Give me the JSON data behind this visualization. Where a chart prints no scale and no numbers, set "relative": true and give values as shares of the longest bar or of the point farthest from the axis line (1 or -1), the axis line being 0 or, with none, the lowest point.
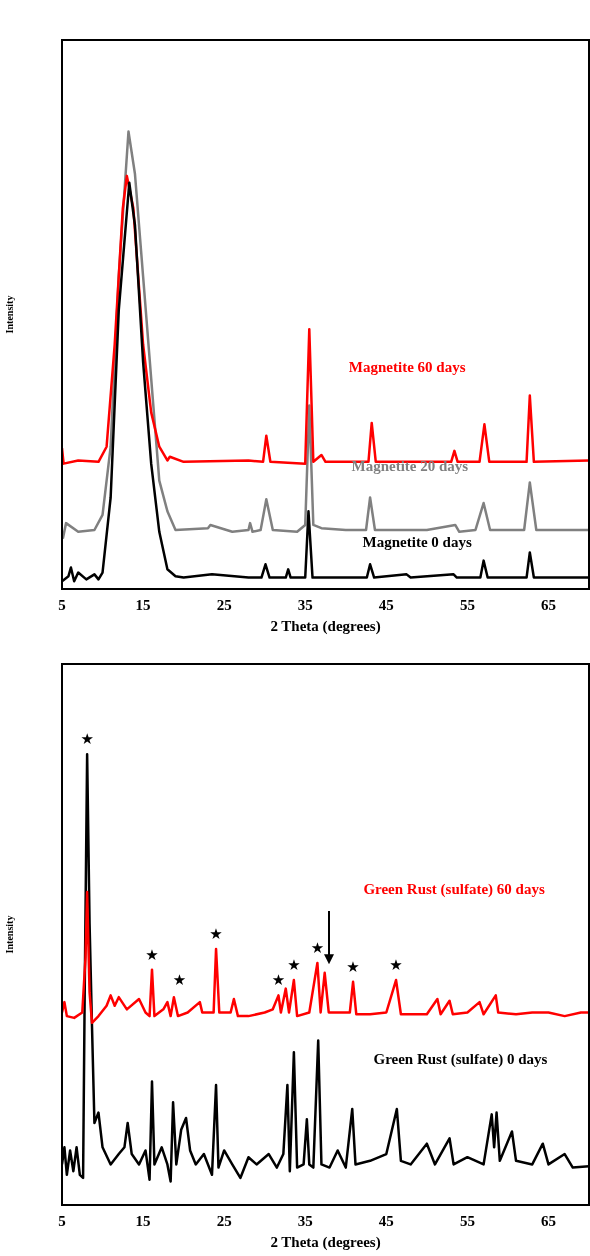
{
  "chart_data": [
    {
      "type": "line",
      "relative": true,
      "xlim": [
        5,
        70
      ],
      "xticks": [
        5,
        15,
        25,
        35,
        45,
        55,
        65
      ],
      "xlabel": "2 Theta (degrees)",
      "ylabel": "Intensity",
      "tick_labels": "x",
      "grid": false,
      "legend": false,
      "marker": "none",
      "line_style": "solid",
      "series": [
        {
          "name": "Magnetite 20 days",
          "color": "#808080",
          "x": [
            5.1,
            5.5,
            7,
            9,
            10,
            11,
            12,
            13.2,
            14,
            15,
            16,
            17,
            18,
            19,
            23,
            23.3,
            26,
            28,
            28.2,
            28.5,
            29.5,
            30.2,
            31,
            34,
            35,
            35.5,
            36,
            37,
            40,
            42.5,
            43,
            43.6,
            50,
            53.5,
            54,
            56,
            57,
            57.8,
            62,
            62.7,
            63.5,
            70
          ],
          "values": [
            0.11,
            0.144,
            0.125,
            0.129,
            0.162,
            0.311,
            0.684,
            1,
            0.907,
            0.684,
            0.46,
            0.237,
            0.17,
            0.129,
            0.133,
            0.14,
            0.125,
            0.129,
            0.144,
            0.125,
            0.129,
            0.196,
            0.129,
            0.125,
            0.14,
            0.401,
            0.14,
            0.133,
            0.129,
            0.129,
            0.2,
            0.129,
            0.129,
            0.14,
            0.125,
            0.129,
            0.188,
            0.129,
            0.129,
            0.233,
            0.129,
            0.129
          ]
        },
        {
          "name": "Magnetite 60 days",
          "color": "#ff0000",
          "x": [
            5,
            5.2,
            7,
            9.5,
            10.5,
            11.5,
            12.5,
            13,
            13.8,
            15,
            16,
            17,
            18,
            18.3,
            20,
            28,
            29.8,
            30.2,
            30.7,
            35,
            35.5,
            36,
            37,
            37.5,
            42.8,
            43.2,
            43.7,
            53,
            53.4,
            53.8,
            56.5,
            57.1,
            57.7,
            62.3,
            62.7,
            63.2,
            70
          ],
          "values": [
            0.308,
            0.274,
            0.281,
            0.278,
            0.311,
            0.535,
            0.832,
            0.903,
            0.832,
            0.535,
            0.386,
            0.311,
            0.281,
            0.289,
            0.278,
            0.281,
            0.278,
            0.335,
            0.278,
            0.274,
            0.568,
            0.278,
            0.293,
            0.278,
            0.278,
            0.363,
            0.278,
            0.278,
            0.302,
            0.278,
            0.278,
            0.36,
            0.278,
            0.278,
            0.423,
            0.278,
            0.281
          ]
        },
        {
          "name": "Magnetite 0 days",
          "color": "#000000",
          "x": [
            5,
            5.8,
            6.1,
            6.5,
            7,
            8,
            9,
            9.5,
            10,
            11,
            12,
            13.3,
            14,
            15,
            16,
            17,
            18,
            19,
            20,
            23.5,
            28,
            29.6,
            30.1,
            30.6,
            32.6,
            32.9,
            33.2,
            35,
            35.4,
            35.9,
            42.6,
            43,
            43.5,
            47.5,
            48,
            53.3,
            53.7,
            56.6,
            57,
            57.5,
            62.3,
            62.7,
            63.2,
            70
          ],
          "values": [
            0.017,
            0.028,
            0.047,
            0.017,
            0.036,
            0.021,
            0.032,
            0.021,
            0.036,
            0.2,
            0.609,
            0.888,
            0.795,
            0.497,
            0.274,
            0.125,
            0.043,
            0.028,
            0.025,
            0.032,
            0.025,
            0.025,
            0.054,
            0.025,
            0.025,
            0.043,
            0.025,
            0.025,
            0.17,
            0.025,
            0.025,
            0.054,
            0.025,
            0.032,
            0.025,
            0.032,
            0.025,
            0.025,
            0.062,
            0.025,
            0.025,
            0.08,
            0.025,
            0.025
          ]
        }
      ]
    },
    {
      "type": "line",
      "relative": true,
      "xlim": [
        5,
        70
      ],
      "xticks": [
        5,
        15,
        25,
        35,
        45,
        55,
        65
      ],
      "xlabel": "2 Theta (degrees)",
      "ylabel": "Intensity",
      "tick_labels": "x",
      "grid": false,
      "legend": false,
      "marker": "none",
      "line_style": "solid",
      "series": [
        {
          "name": "Green Rust (sulfate) 0 days",
          "color": "#000000",
          "x": [
            5,
            5.3,
            5.6,
            6,
            6.4,
            6.8,
            7.2,
            7.6,
            7.8,
            8.1,
            8.4,
            8.7,
            9,
            9.5,
            10,
            11,
            12,
            12.7,
            13.1,
            13.6,
            14.5,
            15.3,
            15.8,
            16.1,
            16.4,
            17.3,
            18,
            18.4,
            18.7,
            19.1,
            19.7,
            20.3,
            20.8,
            21.5,
            22.5,
            23.5,
            24,
            24.3,
            25,
            26,
            27,
            28,
            29,
            30.5,
            31.5,
            32.3,
            32.8,
            33.1,
            33.6,
            34,
            34.8,
            35.2,
            35.5,
            36,
            36.6,
            37,
            38,
            39,
            40,
            40.8,
            41.2,
            43,
            45,
            46.3,
            46.8,
            48,
            50,
            51,
            52.8,
            53.3,
            55,
            57,
            58,
            58.3,
            58.6,
            59,
            60.5,
            61,
            63,
            64.3,
            65,
            67,
            68,
            70
          ],
          "values": [
            0.09,
            0.128,
            0.067,
            0.121,
            0.075,
            0.128,
            0.067,
            0.06,
            0.472,
            1,
            0.625,
            0.396,
            0.182,
            0.205,
            0.128,
            0.09,
            0.113,
            0.128,
            0.182,
            0.113,
            0.09,
            0.121,
            0.056,
            0.274,
            0.09,
            0.128,
            0.09,
            0.052,
            0.228,
            0.09,
            0.167,
            0.193,
            0.121,
            0.09,
            0.113,
            0.067,
            0.266,
            0.083,
            0.121,
            0.09,
            0.06,
            0.106,
            0.09,
            0.113,
            0.083,
            0.113,
            0.266,
            0.075,
            0.339,
            0.083,
            0.09,
            0.19,
            0.09,
            0.083,
            0.365,
            0.09,
            0.083,
            0.121,
            0.083,
            0.213,
            0.09,
            0.098,
            0.113,
            0.213,
            0.098,
            0.09,
            0.136,
            0.09,
            0.148,
            0.09,
            0.106,
            0.09,
            0.201,
            0.128,
            0.205,
            0.098,
            0.163,
            0.098,
            0.09,
            0.136,
            0.09,
            0.113,
            0.083,
            0.086
          ]
        },
        {
          "name": "Green Rust (sulfate) 60 days",
          "color": "#ff0000",
          "x": [
            5,
            5.3,
            5.6,
            6.5,
            7.5,
            7.9,
            8.1,
            8.4,
            8.7,
            9.5,
            10.5,
            11,
            11.5,
            12,
            13,
            14.5,
            15.3,
            15.8,
            16.1,
            16.4,
            17.5,
            18,
            18.4,
            18.8,
            19.3,
            20.5,
            22,
            22.3,
            23.7,
            24,
            24.4,
            25.8,
            26.2,
            26.7,
            28,
            30,
            31,
            31.7,
            32,
            32.6,
            33,
            33.6,
            34,
            35.5,
            36.5,
            36.9,
            37.4,
            37.9,
            39,
            40.5,
            40.9,
            41.3,
            43,
            45,
            46.2,
            46.8,
            50,
            51.3,
            51.7,
            52.8,
            53.2,
            55,
            56.5,
            57,
            58.5,
            58.8,
            61,
            63,
            65,
            67,
            69,
            70
          ],
          "values": [
            0.427,
            0.45,
            0.419,
            0.415,
            0.427,
            0.549,
            0.694,
            0.472,
            0.404,
            0.419,
            0.442,
            0.465,
            0.442,
            0.461,
            0.434,
            0.457,
            0.427,
            0.419,
            0.522,
            0.419,
            0.434,
            0.45,
            0.419,
            0.461,
            0.419,
            0.427,
            0.45,
            0.427,
            0.427,
            0.568,
            0.427,
            0.427,
            0.457,
            0.419,
            0.419,
            0.427,
            0.434,
            0.465,
            0.427,
            0.48,
            0.427,
            0.499,
            0.419,
            0.427,
            0.537,
            0.427,
            0.515,
            0.427,
            0.427,
            0.427,
            0.495,
            0.423,
            0.423,
            0.427,
            0.499,
            0.423,
            0.423,
            0.457,
            0.423,
            0.453,
            0.423,
            0.427,
            0.45,
            0.423,
            0.465,
            0.427,
            0.423,
            0.427,
            0.427,
            0.419,
            0.427,
            0.427
          ]
        }
      ],
      "annotations": [
        {
          "text": "★",
          "x": 8.1,
          "y": 1
        },
        {
          "text": "★",
          "x": 16.1,
          "y": 0.522
        },
        {
          "text": "★",
          "x": 19.5,
          "y": 0.465
        },
        {
          "text": "★",
          "x": 24,
          "y": 0.568
        },
        {
          "text": "★",
          "x": 31.7,
          "y": 0.465
        },
        {
          "text": "★",
          "x": 33.6,
          "y": 0.499
        },
        {
          "text": "★",
          "x": 36.5,
          "y": 0.537
        },
        {
          "text": "★",
          "x": 40.9,
          "y": 0.495
        },
        {
          "text": "★",
          "x": 46.2,
          "y": 0.499
        }
      ]
    }
  ]
}
